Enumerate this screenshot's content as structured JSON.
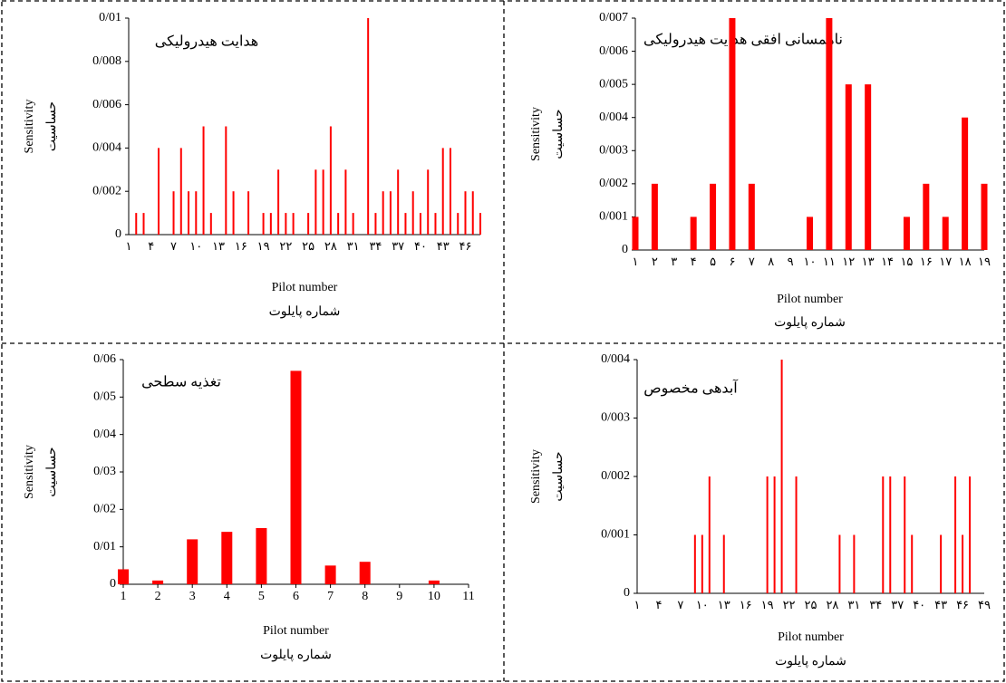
{
  "chart_data": [
    {
      "type": "bar",
      "title": "هدایت هیدرولیکی",
      "y_label": "Sensitivity",
      "y_label_fa": "حساسیت",
      "x_label": "Pilot number",
      "x_label_fa": "شماره پایلوت",
      "color": "#ff0000",
      "categories": [
        "۱",
        null,
        null,
        "۴",
        null,
        null,
        "۷",
        null,
        null,
        "۱۰",
        null,
        null,
        "۱۳",
        null,
        null,
        "۱۶",
        null,
        null,
        "۱۹",
        null,
        null,
        "۲۲",
        null,
        null,
        "۲۵",
        null,
        null,
        "۲۸",
        null,
        null,
        "۳۱",
        null,
        null,
        "۳۴",
        null,
        null,
        "۳۷",
        null,
        null,
        "۴۰",
        null,
        null,
        "۴۳",
        null,
        null,
        "۴۶",
        null,
        null
      ],
      "values": [
        0,
        0.001,
        0.001,
        0,
        0.004,
        0,
        0.002,
        0.004,
        0.002,
        0.002,
        0.005,
        0.001,
        0,
        0.005,
        0.002,
        0,
        0.002,
        0,
        0.001,
        0.001,
        0.003,
        0.001,
        0.001,
        0,
        0.001,
        0.003,
        0.003,
        0.005,
        0.001,
        0.003,
        0.001,
        0,
        0.01,
        0.001,
        0.002,
        0.002,
        0.003,
        0.001,
        0.002,
        0.001,
        0.003,
        0.001,
        0.004,
        0.004,
        0.001,
        0.002,
        0.002,
        0.001
      ],
      "ylim": [
        0,
        0.01
      ],
      "yticks": [
        0,
        {
          "value": 0.002,
          "label": "0/002"
        },
        {
          "value": 0.004,
          "label": "0/004"
        },
        {
          "value": 0.006,
          "label": "0/006"
        },
        {
          "value": 0.008,
          "label": "0/008"
        },
        {
          "value": 0.01,
          "label": "0/01"
        }
      ]
    },
    {
      "type": "bar",
      "title": "ناهمسانی افقی هدایت هیدرولیکی",
      "y_label": "Sensitivity",
      "y_label_fa": "حساسیت",
      "x_label": "Pilot number",
      "x_label_fa": "شماره پایلوت",
      "color": "#ff0000",
      "categories": [
        "۱",
        "۲",
        "۳",
        "۴",
        "۵",
        "۶",
        "۷",
        "۸",
        "۹",
        "۱۰",
        "۱۱",
        "۱۲",
        "۱۳",
        "۱۴",
        "۱۵",
        "۱۶",
        "۱۷",
        "۱۸",
        "۱۹"
      ],
      "values": [
        0.001,
        0.002,
        0,
        0.001,
        0.002,
        0.007,
        0.002,
        0,
        0,
        0.001,
        0.007,
        0.005,
        0.005,
        0,
        0.001,
        0.002,
        0.001,
        0.004,
        0.002
      ],
      "ylim": [
        0,
        0.007
      ],
      "yticks": [
        0,
        {
          "value": 0.001,
          "label": "0/001"
        },
        {
          "value": 0.002,
          "label": "0/002"
        },
        {
          "value": 0.003,
          "label": "0/003"
        },
        {
          "value": 0.004,
          "label": "0/004"
        },
        {
          "value": 0.005,
          "label": "0/005"
        },
        {
          "value": 0.006,
          "label": "0/006"
        },
        {
          "value": 0.007,
          "label": "0/007"
        }
      ]
    },
    {
      "type": "bar",
      "title": "تغذیه سطحی",
      "y_label": "Sensitivity",
      "y_label_fa": "حساسیت",
      "x_label": "Pilot number",
      "x_label_fa": "شماره پایلوت",
      "color": "#ff0000",
      "x": [
        1,
        2,
        3,
        4,
        5,
        6,
        7,
        8,
        9,
        10
      ],
      "values": [
        0.004,
        0.001,
        0.012,
        0.014,
        0.015,
        0.057,
        0.005,
        0.006,
        0,
        0.001
      ],
      "xlim": [
        1,
        11
      ],
      "xticks": [
        1,
        2,
        3,
        4,
        5,
        6,
        7,
        8,
        9,
        10,
        11
      ],
      "ylim": [
        0,
        0.06
      ],
      "yticks": [
        0,
        {
          "value": 0.01,
          "label": "0/01"
        },
        {
          "value": 0.02,
          "label": "0/02"
        },
        {
          "value": 0.03,
          "label": "0/03"
        },
        {
          "value": 0.04,
          "label": "0/04"
        },
        {
          "value": 0.05,
          "label": "0/05"
        },
        {
          "value": 0.06,
          "label": "0/06"
        }
      ]
    },
    {
      "type": "bar",
      "title": "آبدهی مخصوص",
      "y_label": "Sensitivity",
      "y_label_fa": "حساسیت",
      "x_label": "Pilot number",
      "x_label_fa": "شماره پایلوت",
      "color": "#ff0000",
      "categories": [
        "۱",
        null,
        null,
        "۴",
        null,
        null,
        "۷",
        null,
        null,
        "۱۰",
        null,
        null,
        "۱۳",
        null,
        null,
        "۱۶",
        null,
        null,
        "۱۹",
        null,
        null,
        "۲۲",
        null,
        null,
        "۲۵",
        null,
        null,
        "۲۸",
        null,
        null,
        "۳۱",
        null,
        null,
        "۳۴",
        null,
        null,
        "۳۷",
        null,
        null,
        "۴۰",
        null,
        null,
        "۴۳",
        null,
        null,
        "۴۶",
        null,
        null,
        "۴۹"
      ],
      "values": [
        0,
        0,
        0,
        0,
        0,
        0,
        0,
        0,
        0.001,
        0.001,
        0.002,
        0,
        0.001,
        0,
        0,
        0,
        0,
        0,
        0.002,
        0.002,
        0.004,
        0,
        0.002,
        0,
        0,
        0,
        0,
        0,
        0.001,
        0,
        0.001,
        0,
        0,
        0,
        0.002,
        0.002,
        0,
        0.002,
        0.001,
        0,
        0,
        0,
        0.001,
        0,
        0.002,
        0.001,
        0.002,
        0,
        0
      ],
      "ylim": [
        0,
        0.004
      ],
      "yticks": [
        0,
        {
          "value": 0.001,
          "label": "0/001"
        },
        {
          "value": 0.002,
          "label": "0/002"
        },
        {
          "value": 0.003,
          "label": "0/003"
        },
        {
          "value": 0.004,
          "label": "0/004"
        }
      ]
    }
  ]
}
